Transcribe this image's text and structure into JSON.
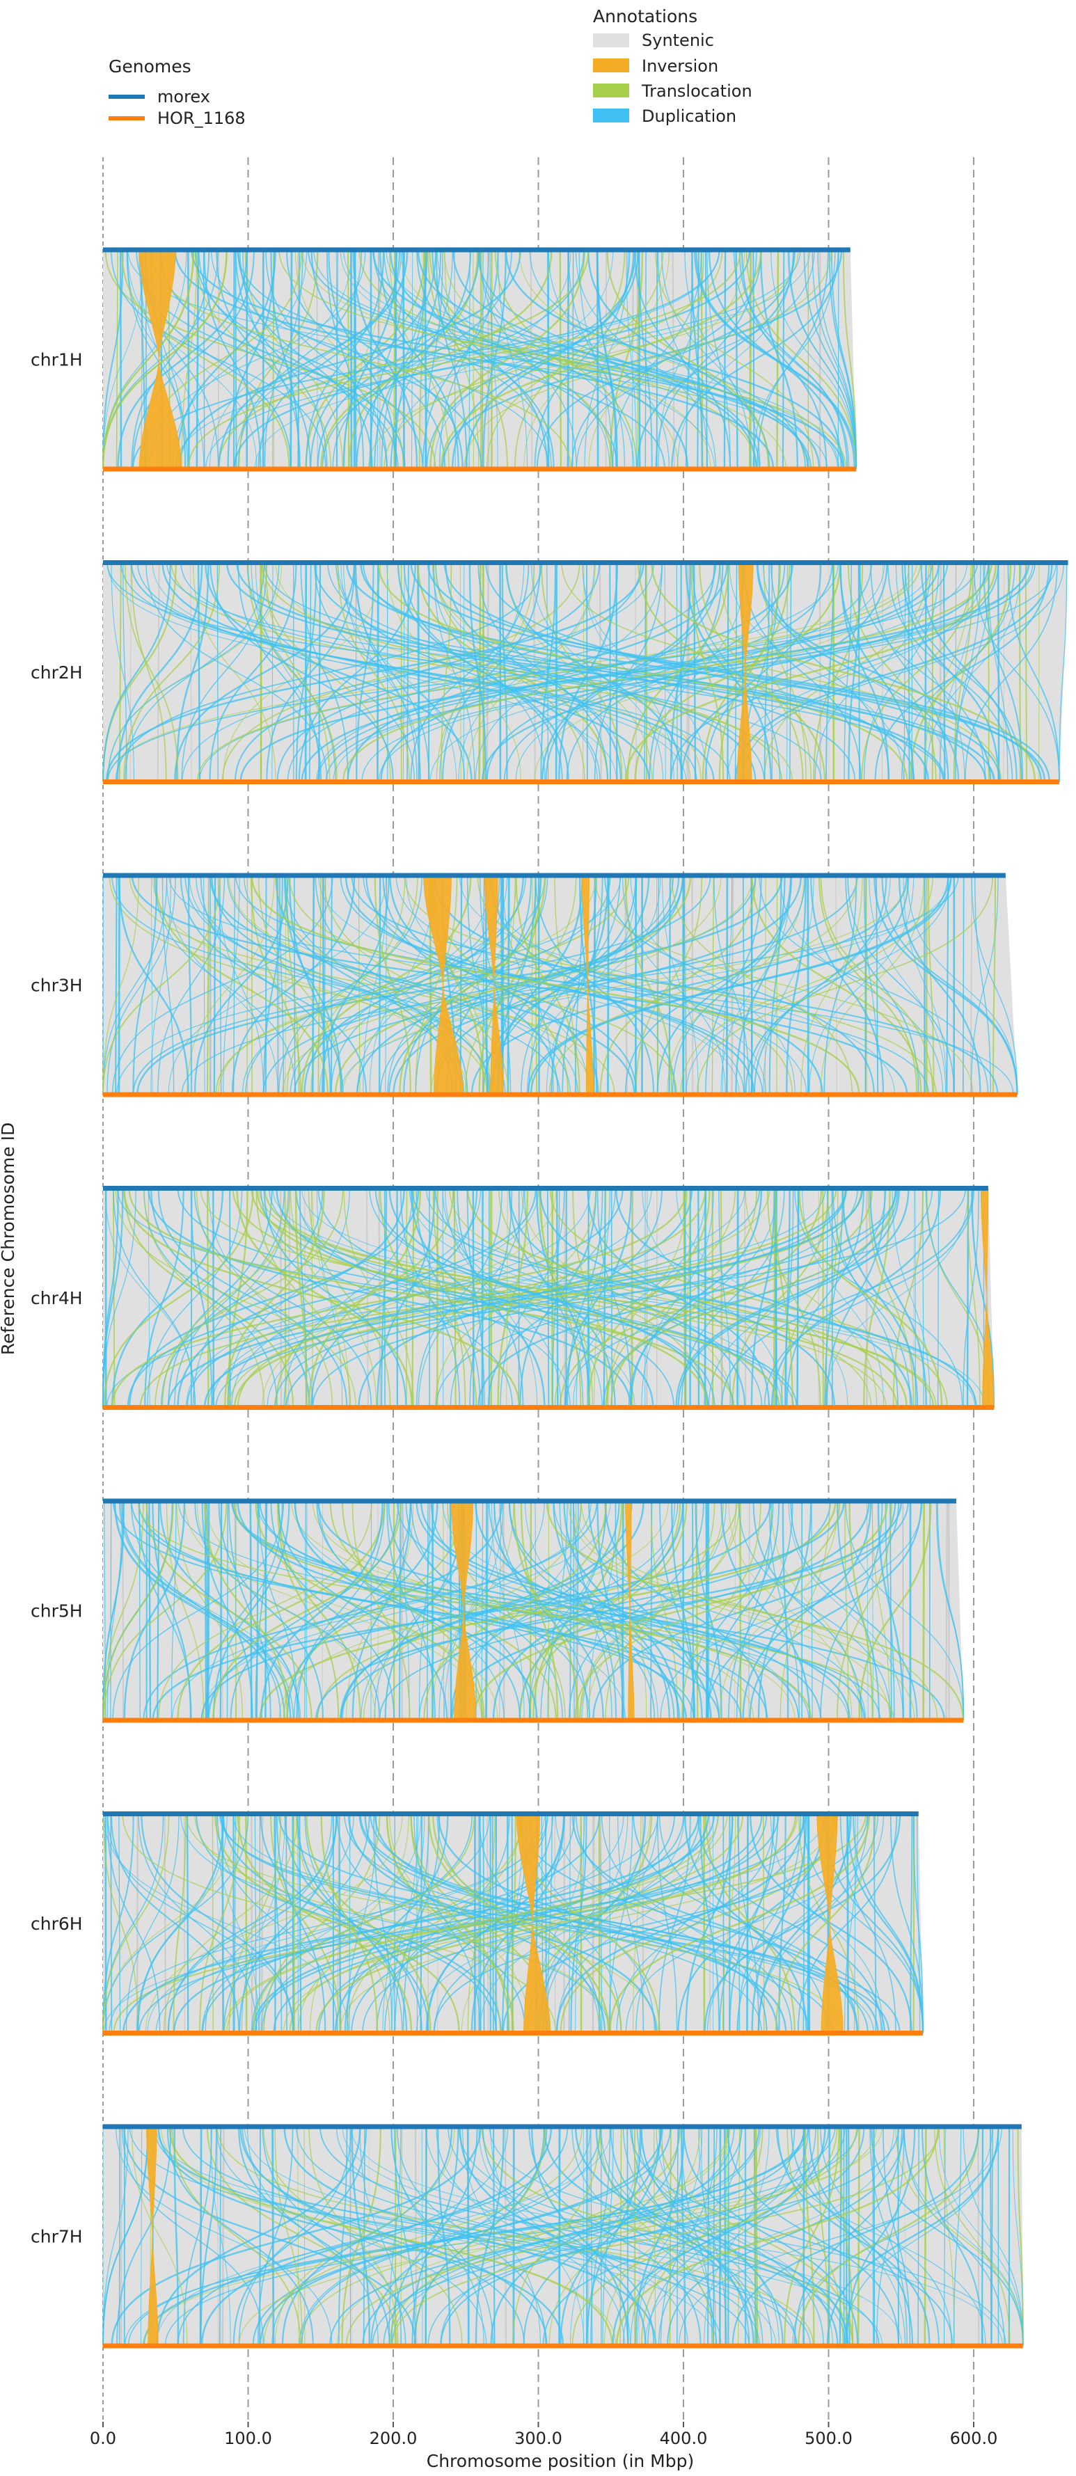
{
  "chart_data": {
    "type": "synteny",
    "xlabel": "Chromosome position (in Mbp)",
    "ylabel": "Reference Chromosome ID",
    "xlim": [
      0,
      665
    ],
    "x_ticks": [
      0,
      100,
      200,
      300,
      400,
      500,
      600
    ],
    "x_tick_labels": [
      "0.0",
      "100.0",
      "200.0",
      "300.0",
      "400.0",
      "500.0",
      "600.0"
    ],
    "grid": "vertical dashed at x ticks",
    "genomes_legend": {
      "title": "Genomes",
      "placement": "top-left",
      "entries": [
        {
          "name": "morex",
          "color": "#1f77b4",
          "role": "reference (top track)"
        },
        {
          "name": "HOR_1168",
          "color": "#ff7f0e",
          "role": "query (bottom track)"
        }
      ]
    },
    "annotations_legend": {
      "title": "Annotations",
      "placement": "top-center",
      "entries": [
        {
          "name": "Syntenic",
          "color": "#e0e0e0"
        },
        {
          "name": "Inversion",
          "color": "#f5ac25"
        },
        {
          "name": "Translocation",
          "color": "#a6cf4a"
        },
        {
          "name": "Duplication",
          "color": "#3ec1f2"
        }
      ]
    },
    "chromosomes": [
      {
        "id": "chr1H",
        "ref_length": 515,
        "qry_length": 519,
        "inversions": [
          {
            "ref": [
              25,
              50
            ],
            "qry": [
              25,
              54
            ]
          }
        ]
      },
      {
        "id": "chr2H",
        "ref_length": 665,
        "qry_length": 659,
        "inversions": [
          {
            "ref": [
              438,
              448
            ],
            "qry": [
              437,
              447
            ]
          }
        ]
      },
      {
        "id": "chr3H",
        "ref_length": 622,
        "qry_length": 630,
        "inversions": [
          {
            "ref": [
              221,
              240
            ],
            "qry": [
              228,
              248
            ]
          },
          {
            "ref": [
              263,
              272
            ],
            "qry": [
              267,
              276
            ]
          },
          {
            "ref": [
              330,
              335
            ],
            "qry": [
              333,
              338
            ]
          }
        ]
      },
      {
        "id": "chr4H",
        "ref_length": 610,
        "qry_length": 614,
        "inversions": [
          {
            "ref": [
              605,
              610
            ],
            "qry": [
              606,
              614
            ]
          }
        ]
      },
      {
        "id": "chr5H",
        "ref_length": 588,
        "qry_length": 593,
        "inversions": [
          {
            "ref": [
              240,
              255
            ],
            "qry": [
              242,
              257
            ]
          },
          {
            "ref": [
              360,
              364
            ],
            "qry": [
              362,
              366
            ]
          }
        ]
      },
      {
        "id": "chr6H",
        "ref_length": 562,
        "qry_length": 565,
        "inversions": [
          {
            "ref": [
              285,
              301
            ],
            "qry": [
              290,
              308
            ]
          },
          {
            "ref": [
              492,
              506
            ],
            "qry": [
              495,
              510
            ]
          }
        ]
      },
      {
        "id": "chr7H",
        "ref_length": 633,
        "qry_length": 634,
        "inversions": [
          {
            "ref": [
              30,
              37
            ],
            "qry": [
              31,
              38
            ]
          }
        ]
      }
    ]
  }
}
